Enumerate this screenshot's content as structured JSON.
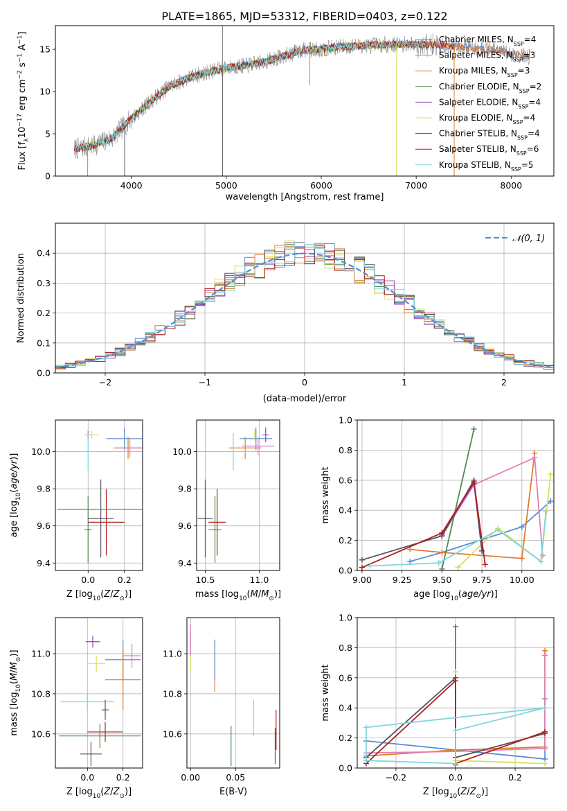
{
  "figure": {
    "title": "PLATE=1865, MJD=53312, FIBERID=0403, z=0.122"
  },
  "colors": {
    "Chabrier MILES": "#5b8bd6",
    "Salpeter MILES": "#e07b2a",
    "Kroupa MILES": "#c08a3a",
    "Chabrier ELODIE": "#4f8a5a",
    "Salpeter ELODIE": "#9b3fb3",
    "Kroupa ELODIE": "#d8e05a",
    "Chabrier STELIB": "#555555",
    "Salpeter STELIB": "#b01e1e",
    "Kroupa STELIB": "#7fd6de",
    "model_pink": "#e07fb8",
    "normal_curve": "#5b8bd6"
  },
  "chart_data": [
    {
      "id": "spectrum",
      "type": "line",
      "xlabel": "wavelength [Angstrom, rest frame]",
      "ylabel": "Flux [f_λ 10^-17 erg cm^-2 s^-1 A^-1]",
      "xlim": [
        3200,
        8450
      ],
      "ylim": [
        0,
        17.8
      ],
      "xticks": [
        4000,
        5000,
        6000,
        7000,
        8000
      ],
      "yticks": [
        0,
        5,
        10,
        15
      ],
      "legend_position": "upper-right",
      "continuum_x": [
        3400,
        3600,
        3800,
        4000,
        4200,
        4400,
        4600,
        4800,
        5000,
        5200,
        5400,
        5600,
        5800,
        6000,
        6200,
        6400,
        6600,
        6800,
        7000,
        7200,
        7400,
        7600,
        7800,
        8000,
        8200
      ],
      "continuum_y": [
        3.2,
        3.6,
        4.5,
        6.8,
        8.8,
        10.6,
        11.6,
        12.3,
        12.8,
        13.1,
        13.5,
        14.2,
        14.9,
        15.0,
        15.3,
        15.4,
        15.5,
        15.6,
        15.6,
        15.5,
        15.4,
        15.2,
        14.9,
        14.5,
        14.1
      ],
      "series": [
        {
          "name": "Chabrier MILES, N_SSP=4",
          "label_main": "Chabrier MILES, N",
          "label_sub": "SSP",
          "label_tail": "=4"
        },
        {
          "name": "Salpeter MILES, N_SSP=3",
          "label_main": "Salpeter MILES, N",
          "label_sub": "SSP",
          "label_tail": "=3"
        },
        {
          "name": "Kroupa MILES, N_SSP=3",
          "label_main": "Kroupa MILES, N",
          "label_sub": "SSP",
          "label_tail": "=3"
        },
        {
          "name": "Chabrier ELODIE, N_SSP=2",
          "label_main": "Chabrier ELODIE, N",
          "label_sub": "SSP",
          "label_tail": "=2"
        },
        {
          "name": "Salpeter ELODIE, N_SSP=4",
          "label_main": "Salpeter ELODIE, N",
          "label_sub": "SSP",
          "label_tail": "=4"
        },
        {
          "name": "Kroupa ELODIE, N_SSP=4",
          "label_main": "Kroupa ELODIE, N",
          "label_sub": "SSP",
          "label_tail": "=4"
        },
        {
          "name": "Chabrier STELIB, N_SSP=4",
          "label_main": "Chabrier STELIB, N",
          "label_sub": "SSP",
          "label_tail": "=4"
        },
        {
          "name": "Salpeter STELIB, N_SSP=6",
          "label_main": "Salpeter STELIB, N",
          "label_sub": "SSP",
          "label_tail": "=6"
        },
        {
          "name": "Kroupa STELIB, N_SSP=5",
          "label_main": "Kroupa STELIB, N",
          "label_sub": "SSP",
          "label_tail": "=5"
        }
      ]
    },
    {
      "id": "residuals",
      "type": "line",
      "xlabel": "(data-model)/error",
      "ylabel": "Normed distribution",
      "xlim": [
        -2.5,
        2.5
      ],
      "ylim": [
        0,
        0.5
      ],
      "xticks": [
        -2,
        -1,
        0,
        1,
        2
      ],
      "yticks": [
        0.0,
        0.1,
        0.2,
        0.3,
        0.4
      ],
      "grid": true,
      "legend_position": "upper-right",
      "legend_label": "𝒩(0, 1)",
      "bin_width": 0.1
    },
    {
      "id": "age_vs_Z",
      "type": "scatter",
      "xlabel": "Z [log10(Z/Z⊙)]",
      "ylabel": "age [log10(age/yr)]",
      "xlim": [
        -0.18,
        0.3
      ],
      "ylim": [
        9.36,
        10.17
      ],
      "xticks": [
        0.0,
        0.2
      ],
      "yticks": [
        9.4,
        9.6,
        9.8,
        10.0
      ],
      "grid": true,
      "points": [
        {
          "model": "Chabrier MILES",
          "x": 0.2,
          "xerr": 0.1,
          "y": 10.07,
          "yerr": 0.06
        },
        {
          "model": "Salpeter MILES",
          "x": 0.22,
          "xerr": 0.08,
          "y": 10.02,
          "yerr": 0.06
        },
        {
          "model": "model_pink",
          "x": 0.23,
          "xerr": 0.07,
          "y": 10.02,
          "yerr": 0.05
        },
        {
          "model": "Salpeter ELODIE",
          "x": 0.0,
          "xerr": 0.02,
          "y": 10.09,
          "yerr": 0.02
        },
        {
          "model": "Kroupa ELODIE",
          "x": 0.02,
          "xerr": 0.04,
          "y": 10.09,
          "yerr": 0.02
        },
        {
          "model": "Kroupa STELIB",
          "x": 0.0,
          "xerr": 0.17,
          "y": 10.0,
          "yerr": 0.1
        },
        {
          "model": "Chabrier ELODIE",
          "x": 0.0,
          "xerr": 0.02,
          "y": 9.58,
          "yerr": 0.18
        },
        {
          "model": "Chabrier STELIB",
          "x": 0.07,
          "xerr": 0.07,
          "y": 9.64,
          "yerr": 0.21
        },
        {
          "model": "Salpeter STELIB",
          "x": 0.1,
          "xerr": 0.1,
          "y": 9.62,
          "yerr": 0.18
        },
        {
          "model": "Chabrier ELODIE",
          "x": 0.07,
          "xerr": 0.24,
          "y": 9.69,
          "yerr": 0.01
        }
      ]
    },
    {
      "id": "age_vs_mass",
      "type": "scatter",
      "xlabel": "mass [log10(M/M⊙)]",
      "ylabel": "",
      "xlim": [
        10.42,
        11.19
      ],
      "ylim": [
        9.36,
        10.17
      ],
      "xticks": [
        10.5,
        11.0
      ],
      "yticks": [
        9.4,
        9.6,
        9.8,
        10.0
      ],
      "grid": true,
      "points": [
        {
          "model": "Chabrier MILES",
          "x": 10.97,
          "xerr": 0.15,
          "y": 10.07,
          "yerr": 0.06
        },
        {
          "model": "Salpeter MILES",
          "x": 10.87,
          "xerr": 0.15,
          "y": 10.02,
          "yerr": 0.06
        },
        {
          "model": "model_pink",
          "x": 10.99,
          "xerr": 0.15,
          "y": 10.03,
          "yerr": 0.05
        },
        {
          "model": "Salpeter ELODIE",
          "x": 11.06,
          "xerr": 0.03,
          "y": 10.09,
          "yerr": 0.04
        },
        {
          "model": "Kroupa ELODIE",
          "x": 10.96,
          "xerr": 0.02,
          "y": 10.09,
          "yerr": 0.03
        },
        {
          "model": "Kroupa STELIB",
          "x": 10.76,
          "xerr": 0.2,
          "y": 10.0,
          "yerr": 0.1
        },
        {
          "model": "Chabrier ELODIE",
          "x": 10.59,
          "xerr": 0.06,
          "y": 9.58,
          "yerr": 0.18
        },
        {
          "model": "Chabrier STELIB",
          "x": 10.5,
          "xerr": 0.07,
          "y": 9.64,
          "yerr": 0.21
        },
        {
          "model": "Salpeter STELIB",
          "x": 10.61,
          "xerr": 0.08,
          "y": 9.62,
          "yerr": 0.18
        }
      ]
    },
    {
      "id": "weight_vs_age",
      "type": "line",
      "xlabel": "age [log10(age/yr)]",
      "ylabel": "mass weight",
      "xlim": [
        8.97,
        10.2
      ],
      "ylim": [
        0,
        1.0
      ],
      "xticks": [
        9.0,
        9.25,
        9.5,
        9.75,
        10.0
      ],
      "yticks": [
        0.0,
        0.2,
        0.4,
        0.6,
        0.8,
        1.0
      ],
      "grid": true,
      "series": [
        {
          "model": "Chabrier MILES",
          "x": [
            9.3,
            9.5,
            10.0,
            10.18
          ],
          "y": [
            0.06,
            0.12,
            0.29,
            0.46
          ]
        },
        {
          "model": "Salpeter MILES",
          "x": [
            9.3,
            9.5,
            10.0,
            10.08
          ],
          "y": [
            0.14,
            0.12,
            0.08,
            0.78
          ]
        },
        {
          "model": "model_pink",
          "x": [
            9.5,
            9.7,
            10.08,
            10.13
          ],
          "y": [
            0.23,
            0.57,
            0.75,
            0.1
          ]
        },
        {
          "model": "Chabrier ELODIE",
          "x": [
            9.5,
            9.7
          ],
          "y": [
            0.01,
            0.94
          ]
        },
        {
          "model": "Salpeter ELODIE",
          "x": [
            9.5,
            9.7,
            9.75
          ],
          "y": [
            0.24,
            0.58,
            0.13
          ]
        },
        {
          "model": "Kroupa ELODIE",
          "x": [
            9.6,
            9.85,
            10.12,
            10.18
          ],
          "y": [
            0.02,
            0.28,
            0.06,
            0.64
          ]
        },
        {
          "model": "Chabrier STELIB",
          "x": [
            9.0,
            9.5,
            9.7,
            9.75
          ],
          "y": [
            0.07,
            0.23,
            0.6,
            0.13
          ]
        },
        {
          "model": "Salpeter STELIB",
          "x": [
            9.0,
            9.5,
            9.7,
            9.77
          ],
          "y": [
            0.02,
            0.25,
            0.59,
            0.04
          ]
        },
        {
          "model": "Kroupa STELIB",
          "x": [
            9.05,
            9.48,
            9.85,
            10.12,
            10.15
          ],
          "y": [
            0.03,
            0.05,
            0.27,
            0.06,
            0.39
          ]
        }
      ]
    },
    {
      "id": "mass_vs_Z",
      "type": "scatter",
      "xlabel": "Z [log10(Z/Z⊙)]",
      "ylabel": "mass [log10(M/M⊙)]",
      "xlim": [
        -0.18,
        0.31
      ],
      "ylim": [
        10.43,
        11.18
      ],
      "xticks": [
        0.0,
        0.2
      ],
      "yticks": [
        10.6,
        10.8,
        11.0
      ],
      "grid": true,
      "points": [
        {
          "model": "Chabrier MILES",
          "x": 0.2,
          "xerr": 0.1,
          "y": 10.97,
          "yerr": 0.1
        },
        {
          "model": "Salpeter MILES",
          "x": 0.2,
          "xerr": 0.1,
          "y": 10.87,
          "yerr": 0.15
        },
        {
          "model": "model_pink",
          "x": 0.25,
          "xerr": 0.05,
          "y": 10.99,
          "yerr": 0.06
        },
        {
          "model": "Salpeter ELODIE",
          "x": 0.03,
          "xerr": 0.04,
          "y": 11.06,
          "yerr": 0.03
        },
        {
          "model": "Kroupa ELODIE",
          "x": 0.05,
          "xerr": 0.05,
          "y": 10.95,
          "yerr": 0.04
        },
        {
          "model": "Kroupa STELIB",
          "x": 0.0,
          "xerr": 0.15,
          "y": 10.76,
          "yerr": 0.04
        },
        {
          "model": "Chabrier STELIB",
          "x": 0.1,
          "xerr": 0.02,
          "y": 10.72,
          "yerr": 0.05
        },
        {
          "model": "Chabrier ELODIE",
          "x": 0.07,
          "xerr": 0.23,
          "y": 10.59,
          "yerr": 0.06
        },
        {
          "model": "Salpeter STELIB",
          "x": 0.1,
          "xerr": 0.1,
          "y": 10.61,
          "yerr": 0.05
        },
        {
          "model": "Chabrier STELIB",
          "x": 0.02,
          "xerr": 0.06,
          "y": 10.5,
          "yerr": 0.06
        }
      ]
    },
    {
      "id": "mass_vs_ebv",
      "type": "scatter",
      "xlabel": "E(B-V)",
      "ylabel": "",
      "xlim": [
        -0.004,
        0.099
      ],
      "ylim": [
        10.43,
        11.18
      ],
      "xticks": [
        0.0,
        0.05
      ],
      "yticks": [
        10.6,
        10.8,
        11.0
      ],
      "grid": true,
      "points": [
        {
          "model": "Salpeter ELODIE",
          "x": 0.0,
          "y": 11.05,
          "yerr": 0.05
        },
        {
          "model": "model_pink",
          "x": 0.0,
          "y": 11.07,
          "yerr": 0.08
        },
        {
          "model": "Kroupa ELODIE",
          "x": 0.0,
          "y": 10.95,
          "yerr": 0.04
        },
        {
          "model": "Salpeter MILES",
          "x": 0.027,
          "y": 10.94,
          "yerr": 0.13
        },
        {
          "model": "Chabrier MILES",
          "x": 0.027,
          "y": 10.97,
          "yerr": 0.1
        },
        {
          "model": "Chabrier ELODIE",
          "x": 0.045,
          "y": 10.54,
          "yerr": 0.1
        },
        {
          "model": "Kroupa STELIB",
          "x": 0.07,
          "y": 10.68,
          "yerr": 0.09
        },
        {
          "model": "Chabrier STELIB",
          "x": 0.094,
          "y": 10.54,
          "yerr": 0.09
        },
        {
          "model": "Salpeter STELIB",
          "x": 0.095,
          "y": 10.62,
          "yerr": 0.1
        }
      ]
    },
    {
      "id": "weight_vs_Z",
      "type": "line",
      "xlabel": "Z [log10(Z/Z⊙)]",
      "ylabel": "mass weight",
      "xlim": [
        -0.33,
        0.33
      ],
      "ylim": [
        0,
        1.0
      ],
      "xticks": [
        -0.2,
        0.0,
        0.2
      ],
      "yticks": [
        0.0,
        0.2,
        0.4,
        0.6,
        0.8,
        1.0
      ],
      "grid": true,
      "series": [
        {
          "model": "Chabrier MILES",
          "x": [
            -0.3,
            0.0,
            0.3,
            0.3
          ],
          "y": [
            0.18,
            0.12,
            0.06,
            0.46
          ]
        },
        {
          "model": "Salpeter MILES",
          "x": [
            -0.3,
            0.0,
            0.3,
            0.3
          ],
          "y": [
            0.08,
            0.12,
            0.14,
            0.78
          ]
        },
        {
          "model": "model_pink",
          "x": [
            -0.3,
            0.0,
            0.3,
            0.3
          ],
          "y": [
            0.1,
            0.11,
            0.13,
            0.75
          ]
        },
        {
          "model": "Chabrier ELODIE",
          "x": [
            0.0,
            0.0
          ],
          "y": [
            0.02,
            0.94
          ]
        },
        {
          "model": "Kroupa ELODIE",
          "x": [
            0.0,
            0.0,
            0.3
          ],
          "y": [
            0.64,
            0.05,
            0.03
          ]
        },
        {
          "model": "Chabrier STELIB",
          "x": [
            -0.3,
            0.0,
            0.0,
            0.3
          ],
          "y": [
            0.07,
            0.6,
            0.07,
            0.23
          ]
        },
        {
          "model": "Salpeter STELIB",
          "x": [
            -0.3,
            0.0,
            0.0,
            0.3
          ],
          "y": [
            0.03,
            0.58,
            0.03,
            0.24
          ]
        },
        {
          "model": "Kroupa STELIB",
          "x": [
            -0.3,
            0.0,
            0.0,
            0.3,
            -0.3,
            -0.3
          ],
          "y": [
            0.05,
            0.03,
            0.25,
            0.4,
            0.27,
            0.05
          ]
        }
      ]
    }
  ]
}
